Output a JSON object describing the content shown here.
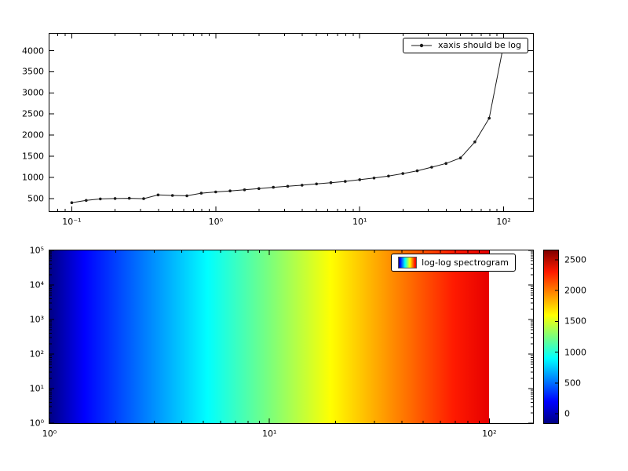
{
  "figure": {
    "background": "#ffffff"
  },
  "chart_data": [
    {
      "type": "line",
      "legend": "xaxis should be log",
      "xscale": "log",
      "yscale": "linear",
      "xlim": [
        0.07,
        160
      ],
      "ylim": [
        200,
        4400
      ],
      "xticks": [
        0.1,
        1,
        10,
        100
      ],
      "xtick_labels": [
        "10⁻¹",
        "10⁰",
        "10¹",
        "10²"
      ],
      "yticks": [
        500,
        1000,
        1500,
        2000,
        2500,
        3000,
        3500,
        4000
      ],
      "ytick_labels": [
        "500",
        "1000",
        "1500",
        "2000",
        "2500",
        "3000",
        "3500",
        "4000"
      ],
      "line_color": "#1a1a1a",
      "x": [
        0.1,
        0.126,
        0.158,
        0.2,
        0.251,
        0.316,
        0.398,
        0.501,
        0.631,
        0.794,
        1.0,
        1.259,
        1.585,
        1.995,
        2.512,
        3.162,
        3.981,
        5.012,
        6.31,
        7.943,
        10,
        12.59,
        15.85,
        19.95,
        25.12,
        31.62,
        39.81,
        50.12,
        63.1,
        79.43,
        100
      ],
      "y": [
        400,
        455,
        490,
        500,
        505,
        495,
        585,
        572,
        565,
        625,
        655,
        680,
        705,
        735,
        765,
        790,
        815,
        845,
        875,
        905,
        945,
        985,
        1030,
        1090,
        1155,
        1240,
        1330,
        1460,
        1840,
        2400,
        4150
      ]
    },
    {
      "type": "heatmap",
      "legend": "log-log spectrogram",
      "xscale": "log",
      "yscale": "log",
      "xlim": [
        1,
        158
      ],
      "ylim": [
        1,
        100000
      ],
      "xticks": [
        1,
        10,
        100
      ],
      "xtick_labels": [
        "10⁰",
        "10¹",
        "10²"
      ],
      "yticks": [
        1,
        10,
        100,
        1000,
        10000,
        100000
      ],
      "ytick_labels": [
        "10⁰",
        "10¹",
        "10²",
        "10³",
        "10⁴",
        "10⁵"
      ],
      "extent": {
        "x": [
          1,
          100
        ],
        "y": [
          1,
          100000
        ]
      },
      "description": "horizontal jet-colormap gradient; value rises from ~0 at x=1 to ~2500 at x=100, uniform along y",
      "image_gradient": [
        [
          0,
          "#000084"
        ],
        [
          0.08,
          "#0000ff"
        ],
        [
          0.22,
          "#0080ff"
        ],
        [
          0.36,
          "#00ffff"
        ],
        [
          0.5,
          "#7aff7d"
        ],
        [
          0.64,
          "#ffff00"
        ],
        [
          0.78,
          "#ff8c00"
        ],
        [
          0.92,
          "#ff1a00"
        ],
        [
          1,
          "#e60000"
        ]
      ],
      "colorbar": {
        "ticks": [
          0,
          500,
          1000,
          1500,
          2000,
          2500
        ],
        "tick_labels": [
          "0",
          "500",
          "1000",
          "1500",
          "2000",
          "2500"
        ],
        "vmin": -150,
        "vmax": 2650,
        "stops": [
          [
            0,
            "#000084"
          ],
          [
            0.125,
            "#0000ff"
          ],
          [
            0.25,
            "#0080ff"
          ],
          [
            0.375,
            "#00ffff"
          ],
          [
            0.5,
            "#7aff7d"
          ],
          [
            0.625,
            "#ffff00"
          ],
          [
            0.75,
            "#ff8c00"
          ],
          [
            0.875,
            "#ff1a00"
          ],
          [
            1,
            "#800000"
          ]
        ]
      }
    }
  ]
}
